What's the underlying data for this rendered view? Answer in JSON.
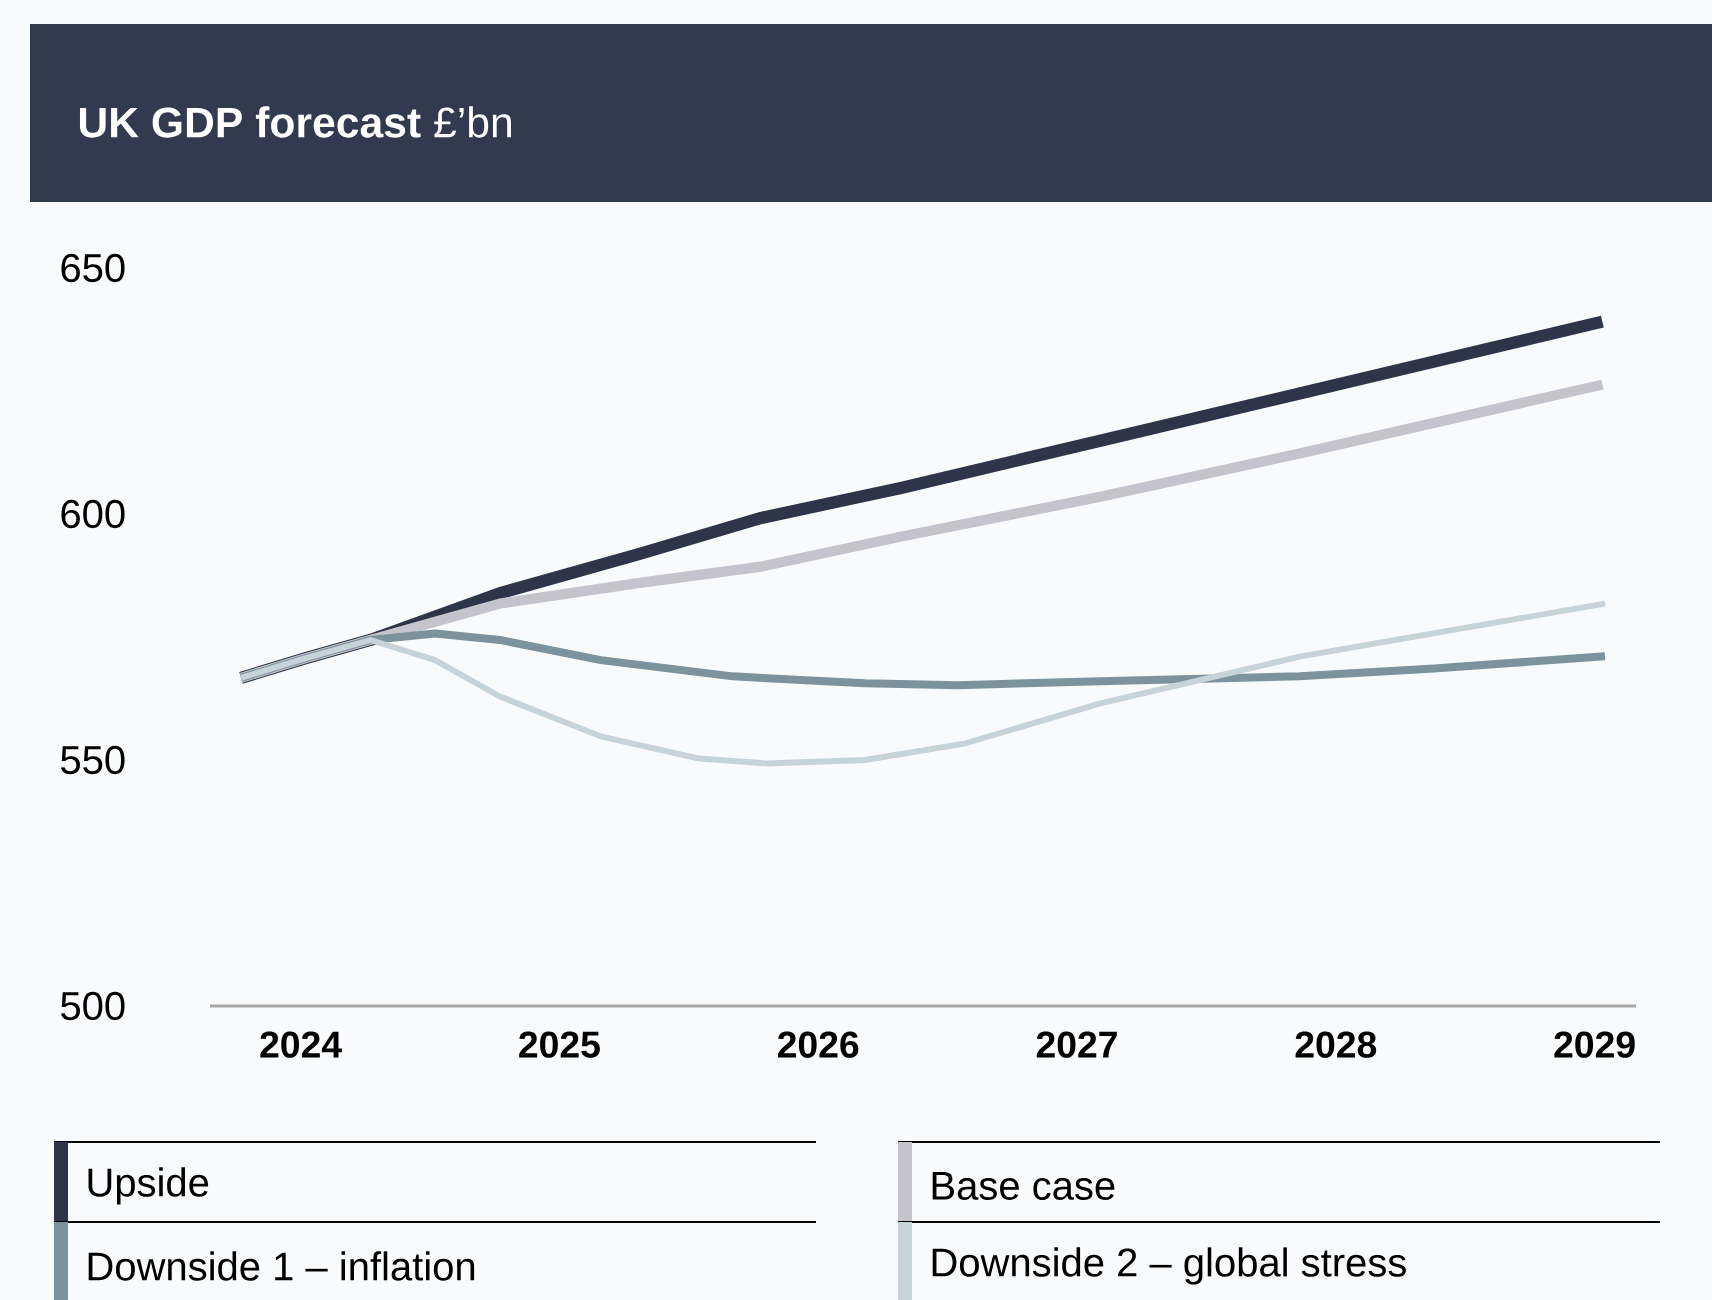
{
  "chart_data": {
    "type": "line",
    "title": "**UK GDP forecast** £’bn",
    "xlim": [
      2023.65,
      2029.16
    ],
    "xticks": [
      2024,
      2025,
      2026,
      2027,
      2028,
      2029
    ],
    "ylim": [
      500,
      650
    ],
    "yticks": [
      500,
      550,
      600,
      650
    ],
    "grid": false,
    "legend": "bottom",
    "marker": "none",
    "line_style": "solid",
    "series": [
      {
        "name": "Upside",
        "color": "#2e3548",
        "x": [
          2023.77,
          2024.02,
          2024.27,
          2024.77,
          2025.31,
          2025.78,
          2026.32,
          2027.09,
          2027.86,
          2029.03
        ],
        "values": [
          566.7,
          570.7,
          574.4,
          583.9,
          591.9,
          599.2,
          605.3,
          614.9,
          624.5,
          639.1
        ]
      },
      {
        "name": "Base case",
        "color": "#c5c3cb",
        "x": [
          2023.77,
          2024.02,
          2024.27,
          2024.77,
          2025.31,
          2025.78,
          2026.32,
          2027.09,
          2027.86,
          2029.03
        ],
        "values": [
          566.7,
          570.7,
          574.4,
          581.8,
          586.0,
          589.3,
          595.4,
          603.5,
          612.3,
          626.3
        ]
      },
      {
        "name": "Downside 1 – inflation",
        "color": "#7c939e",
        "x": [
          2023.77,
          2024.02,
          2024.27,
          2024.52,
          2024.77,
          2025.16,
          2025.67,
          2026.18,
          2026.54,
          2027.09,
          2027.86,
          2028.38,
          2029.04
        ],
        "values": [
          566.7,
          570.7,
          574.4,
          575.7,
          574.4,
          570.3,
          567.0,
          565.6,
          565.2,
          566.0,
          567.0,
          568.6,
          571.1
        ]
      },
      {
        "name": "Downside 2 – global stress",
        "color": "#c6d3d9",
        "x": [
          2023.77,
          2024.02,
          2024.27,
          2024.52,
          2024.77,
          2025.16,
          2025.54,
          2025.8,
          2026.18,
          2026.57,
          2027.09,
          2027.86,
          2029.04
        ],
        "values": [
          566.7,
          570.7,
          574.4,
          570.3,
          562.9,
          554.8,
          550.3,
          549.3,
          550.0,
          553.4,
          561.5,
          571.0,
          581.8
        ]
      }
    ]
  }
}
